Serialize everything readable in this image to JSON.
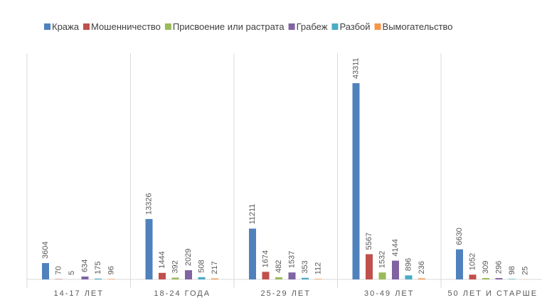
{
  "chart_data": {
    "type": "bar",
    "categories": [
      "14-17 ЛЕТ",
      "18-24 ГОДА",
      "25-29 ЛЕТ",
      "30-49 ЛЕТ",
      "50 ЛЕТ И СТАРШЕ"
    ],
    "series": [
      {
        "name": "Кража",
        "color": "#4f81bd",
        "values": [
          3604,
          13326,
          11211,
          43311,
          6630
        ]
      },
      {
        "name": "Мошенничество",
        "color": "#c0504d",
        "values": [
          70,
          1444,
          1674,
          5567,
          1052
        ]
      },
      {
        "name": "Присвоение или растрата",
        "color": "#9bbb59",
        "values": [
          5,
          392,
          482,
          1532,
          309
        ]
      },
      {
        "name": "Грабеж",
        "color": "#8064a2",
        "values": [
          634,
          2029,
          1537,
          4144,
          296
        ]
      },
      {
        "name": "Разбой",
        "color": "#4bacc6",
        "values": [
          175,
          508,
          353,
          896,
          98
        ]
      },
      {
        "name": "Вымогательство",
        "color": "#f79646",
        "values": [
          96,
          217,
          112,
          236,
          25
        ]
      }
    ],
    "legend": "top"
  }
}
